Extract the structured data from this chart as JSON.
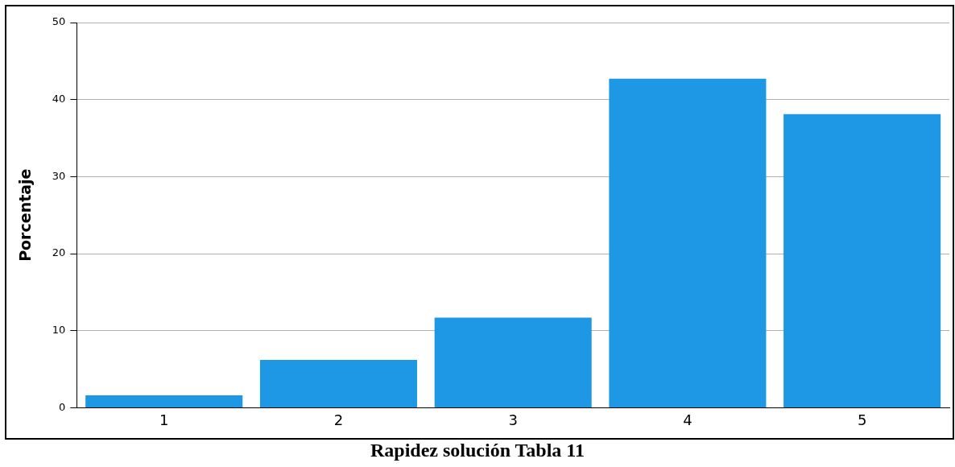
{
  "chart_data": {
    "type": "bar",
    "xlabel": "Rapidez solución Tabla 11",
    "ylabel": "Porcentaje",
    "categories": [
      "1",
      "2",
      "3",
      "4",
      "5"
    ],
    "values": [
      1.6,
      6.2,
      11.7,
      42.7,
      38.1
    ],
    "color": "#1e98e4",
    "ylim": [
      0,
      50
    ],
    "yticks": [
      0,
      10,
      20,
      30,
      40,
      50
    ],
    "grid": "y",
    "legend": false
  }
}
